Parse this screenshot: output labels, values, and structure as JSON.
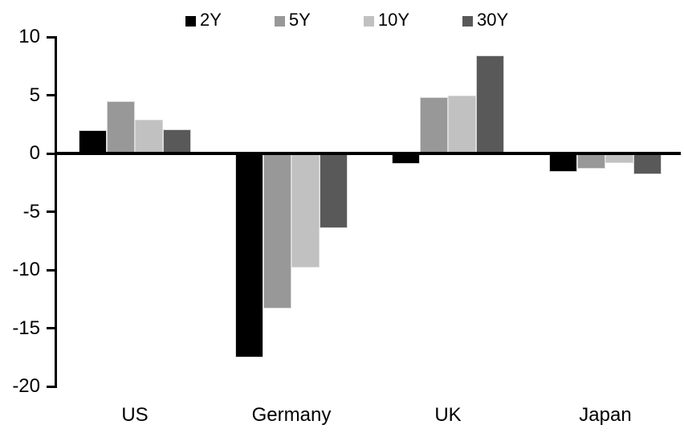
{
  "chart_data": {
    "type": "bar",
    "title": "",
    "categories": [
      "US",
      "Germany",
      "UK",
      "Japan"
    ],
    "series": [
      {
        "name": "2Y",
        "color": "#000000",
        "values": [
          2.0,
          -17.5,
          -0.9,
          -1.6
        ]
      },
      {
        "name": "5Y",
        "color": "#989898",
        "values": [
          4.5,
          -13.3,
          4.8,
          -1.3
        ]
      },
      {
        "name": "10Y",
        "color": "#c1c1c1",
        "values": [
          2.9,
          -9.8,
          5.0,
          -0.8
        ]
      },
      {
        "name": "30Y",
        "color": "#595959",
        "values": [
          2.1,
          -6.4,
          8.4,
          -1.8
        ]
      }
    ],
    "ylim": [
      -20,
      10
    ],
    "yticks": [
      10,
      5,
      0,
      -5,
      -10,
      -15,
      -20
    ],
    "grid": false,
    "legend_position": "top",
    "axis_color": "#000000",
    "bar_edge_color": "#d9d9d9",
    "xlabel": "",
    "ylabel": ""
  }
}
